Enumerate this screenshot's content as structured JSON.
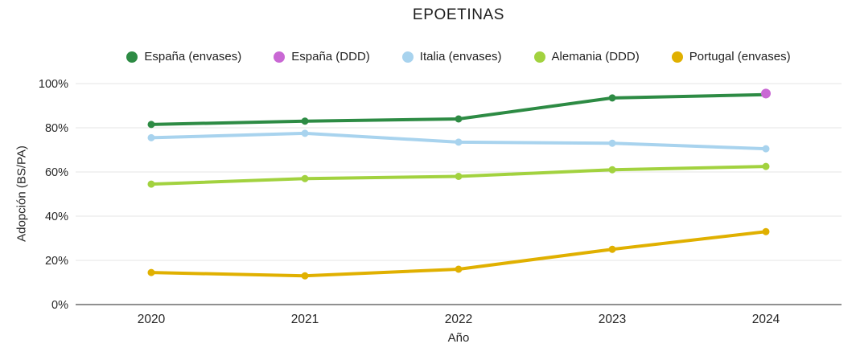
{
  "title": "EPOETINAS",
  "chart_data": {
    "type": "line",
    "x_categories": [
      "2020",
      "2021",
      "2022",
      "2023",
      "2024"
    ],
    "xlabel": "Año",
    "ylabel": "Adopción (BS/PA)",
    "ylim": [
      0,
      100
    ],
    "yticks": [
      0,
      20,
      40,
      60,
      80,
      100
    ],
    "ytick_suffix": "%",
    "grid": "horizontal",
    "legend_position": "top",
    "background_color": "#ffffff",
    "gridline_color": "#e6e6e6",
    "axis_line_color": "#6b6b6b",
    "text_color": "#262626",
    "series": [
      {
        "name": "España (envases)",
        "color": "#2d8b44",
        "values": [
          81.5,
          83,
          84,
          93.5,
          95
        ]
      },
      {
        "name": "España (DDD)",
        "color": "#c968d4",
        "values": [
          null,
          null,
          null,
          null,
          95.5
        ]
      },
      {
        "name": "Italia (envases)",
        "color": "#a8d3ee",
        "values": [
          75.5,
          77.5,
          73.5,
          73,
          70.5
        ]
      },
      {
        "name": "Alemania (DDD)",
        "color": "#a2d23f",
        "values": [
          54.5,
          57,
          58,
          61,
          62.5
        ]
      },
      {
        "name": "Portugal (envases)",
        "color": "#e0b000",
        "values": [
          14.5,
          13,
          16,
          25,
          33
        ]
      }
    ]
  }
}
